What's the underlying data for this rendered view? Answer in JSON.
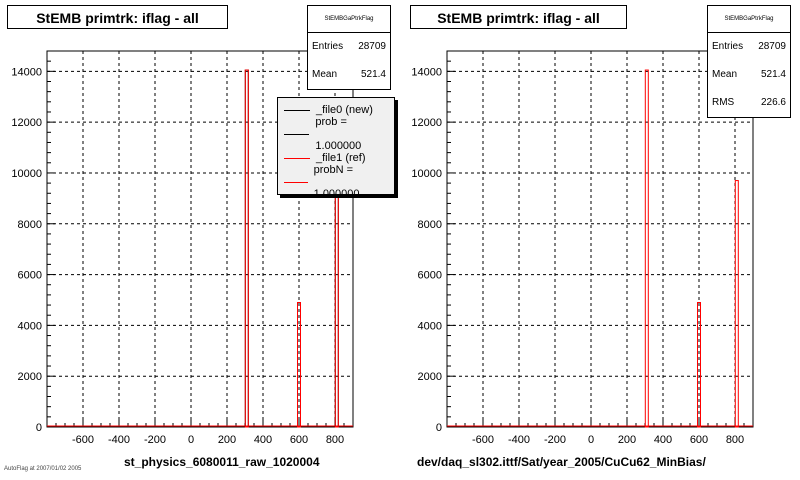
{
  "colors": {
    "new": "#000000",
    "ref": "#ff0000",
    "grid": "#000000",
    "legend_bg": "#f0f0f0"
  },
  "panels": [
    {
      "title": "StEMB primtrk: iflag - all",
      "xlabel": "st_physics_6080011_raw_1020004",
      "stats": {
        "title": "StEMBGaPtrkFlag",
        "rows": [
          {
            "label": "Entries",
            "value": "28709"
          },
          {
            "label": "Mean",
            "value": "521.4"
          }
        ]
      },
      "legend": {
        "items": [
          {
            "label": "_file0 (new)",
            "color": "#000000"
          },
          {
            "label": "prob = 1.000000",
            "color": "#000000"
          },
          {
            "label": "_file1 (ref)",
            "color": "#ff0000"
          },
          {
            "label": "probN = 1.000000",
            "color": "#ff0000"
          }
        ]
      },
      "footer": "AutoFlag at 2007/01/02 2005"
    },
    {
      "title": "StEMB primtrk: iflag - all",
      "xlabel": "dev/daq_sl302.ittf/Sat/year_2005/CuCu62_MinBias/",
      "stats": {
        "title": "StEMBGaPtrkFlag",
        "rows": [
          {
            "label": "Entries",
            "value": "28709"
          },
          {
            "label": "Mean",
            "value": "521.4"
          },
          {
            "label": "RMS",
            "value": "226.6"
          }
        ]
      }
    }
  ],
  "chart_data": [
    {
      "type": "bar",
      "title": "StEMB primtrk: iflag - all",
      "xlabel": "st_physics_6080011_raw_1020004",
      "ylabel": "",
      "xlim": [
        -800,
        900
      ],
      "ylim": [
        0,
        14800
      ],
      "x_ticks": [
        -600,
        -400,
        -200,
        0,
        200,
        400,
        600,
        800
      ],
      "y_ticks": [
        0,
        2000,
        4000,
        6000,
        8000,
        10000,
        12000,
        14000
      ],
      "grid": true,
      "legend_position": "top-right",
      "series": [
        {
          "name": "_file0 (new)",
          "color": "#000000",
          "x": [
            310,
            600,
            810
          ],
          "values": [
            14050,
            4900,
            9700
          ]
        },
        {
          "name": "_file1 (ref)",
          "color": "#ff0000",
          "x": [
            310,
            600,
            810
          ],
          "values": [
            14050,
            4900,
            9700
          ]
        }
      ]
    },
    {
      "type": "bar",
      "title": "StEMB primtrk: iflag - all",
      "xlabel": "dev/daq_sl302.ittf/Sat/year_2005/CuCu62_MinBias/",
      "ylabel": "",
      "xlim": [
        -800,
        900
      ],
      "ylim": [
        0,
        14800
      ],
      "x_ticks": [
        -600,
        -400,
        -200,
        0,
        200,
        400,
        600,
        800
      ],
      "y_ticks": [
        0,
        2000,
        4000,
        6000,
        8000,
        10000,
        12000,
        14000
      ],
      "grid": true,
      "series": [
        {
          "color": "#ff0000",
          "x": [
            310,
            600,
            810
          ],
          "values": [
            14050,
            4900,
            9700
          ]
        }
      ]
    }
  ]
}
